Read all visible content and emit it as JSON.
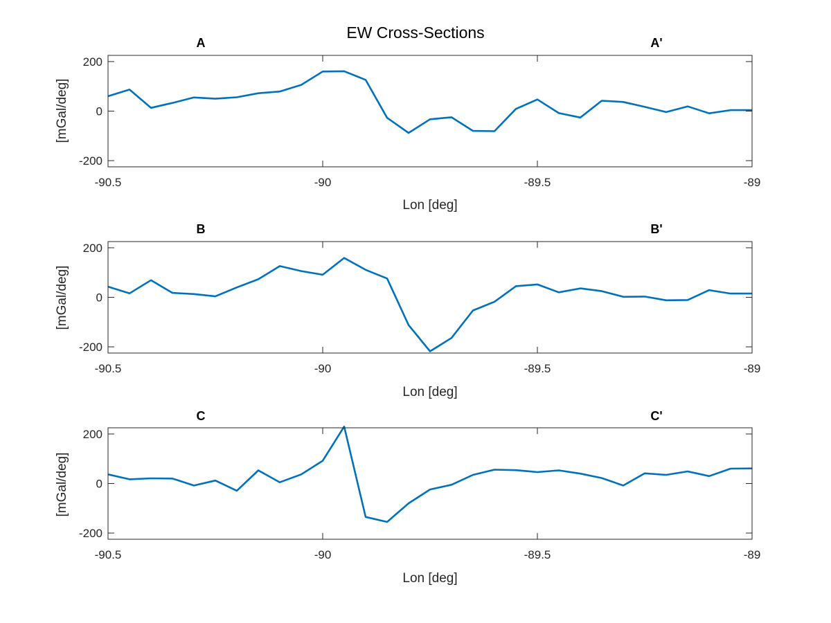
{
  "figure": {
    "title": "EW Cross-Sections"
  },
  "chart_data": [
    {
      "type": "line",
      "left_label": "A",
      "right_label": "A'",
      "xlabel": "Lon [deg]",
      "ylabel": "[mGal/deg]",
      "xlim": [
        -90.5,
        -89
      ],
      "ylim": [
        -225,
        225
      ],
      "xticks": [
        -90.5,
        -90,
        -89.5,
        -89
      ],
      "xtick_labels": [
        "-90.5",
        "-90",
        "-89.5",
        "-89"
      ],
      "yticks": [
        -200,
        0,
        200
      ],
      "ytick_labels": [
        "-200",
        "0",
        "200"
      ],
      "line_color": "#0072BD",
      "grid": false,
      "series": [
        {
          "x": [
            -90.5,
            -90.45,
            -90.4,
            -90.35,
            -90.3,
            -90.25,
            -90.2,
            -90.15,
            -90.1,
            -90.05,
            -90.0,
            -89.95,
            -89.9,
            -89.85,
            -89.8,
            -89.75,
            -89.7,
            -89.65,
            -89.6,
            -89.55,
            -89.5,
            -89.45,
            -89.4,
            -89.35,
            -89.3,
            -89.25,
            -89.2,
            -89.15,
            -89.1,
            -89.05,
            -89.0
          ],
          "y": [
            60,
            87,
            13,
            33,
            55,
            50,
            56,
            72,
            79,
            106,
            160,
            161,
            126,
            -27,
            -88,
            -33,
            -25,
            -80,
            -81,
            9,
            47,
            -8,
            -26,
            42,
            37,
            17,
            -4,
            19,
            -9,
            4,
            4
          ]
        }
      ]
    },
    {
      "type": "line",
      "left_label": "B",
      "right_label": "B'",
      "xlabel": "Lon [deg]",
      "ylabel": "[mGal/deg]",
      "xlim": [
        -90.5,
        -89
      ],
      "ylim": [
        -225,
        225
      ],
      "xticks": [
        -90.5,
        -90,
        -89.5,
        -89
      ],
      "xtick_labels": [
        "-90.5",
        "-90",
        "-89.5",
        "-89"
      ],
      "yticks": [
        -200,
        0,
        200
      ],
      "ytick_labels": [
        "-200",
        "0",
        "200"
      ],
      "line_color": "#0072BD",
      "grid": false,
      "series": [
        {
          "x": [
            -90.5,
            -90.45,
            -90.4,
            -90.35,
            -90.3,
            -90.25,
            -90.2,
            -90.15,
            -90.1,
            -90.05,
            -90.0,
            -89.95,
            -89.9,
            -89.85,
            -89.8,
            -89.75,
            -89.7,
            -89.65,
            -89.6,
            -89.55,
            -89.5,
            -89.45,
            -89.4,
            -89.35,
            -89.3,
            -89.25,
            -89.2,
            -89.15,
            -89.1,
            -89.05,
            -89.0
          ],
          "y": [
            43,
            16,
            69,
            18,
            13,
            4,
            40,
            73,
            126,
            106,
            91,
            159,
            111,
            76,
            -112,
            -218,
            -164,
            -53,
            -18,
            45,
            52,
            20,
            36,
            25,
            2,
            3,
            -12,
            -11,
            29,
            15,
            15
          ]
        }
      ]
    },
    {
      "type": "line",
      "left_label": "C",
      "right_label": "C'",
      "xlabel": "Lon [deg]",
      "ylabel": "[mGal/deg]",
      "xlim": [
        -90.5,
        -89
      ],
      "ylim": [
        -225,
        225
      ],
      "xticks": [
        -90.5,
        -90,
        -89.5,
        -89
      ],
      "xtick_labels": [
        "-90.5",
        "-90",
        "-89.5",
        "-89"
      ],
      "yticks": [
        -200,
        0,
        200
      ],
      "ytick_labels": [
        "-200",
        "0",
        "200"
      ],
      "line_color": "#0072BD",
      "grid": false,
      "series": [
        {
          "x": [
            -90.5,
            -90.45,
            -90.4,
            -90.35,
            -90.3,
            -90.25,
            -90.2,
            -90.15,
            -90.1,
            -90.05,
            -90.0,
            -89.95,
            -89.9,
            -89.85,
            -89.8,
            -89.75,
            -89.7,
            -89.65,
            -89.6,
            -89.55,
            -89.5,
            -89.45,
            -89.4,
            -89.35,
            -89.3,
            -89.25,
            -89.2,
            -89.15,
            -89.1,
            -89.05,
            -89.0
          ],
          "y": [
            37,
            17,
            21,
            20,
            -8,
            12,
            -29,
            53,
            5,
            37,
            92,
            230,
            -135,
            -155,
            -80,
            -24,
            -5,
            35,
            56,
            54,
            46,
            53,
            40,
            22,
            -8,
            41,
            35,
            49,
            30,
            60,
            61
          ]
        }
      ]
    }
  ]
}
